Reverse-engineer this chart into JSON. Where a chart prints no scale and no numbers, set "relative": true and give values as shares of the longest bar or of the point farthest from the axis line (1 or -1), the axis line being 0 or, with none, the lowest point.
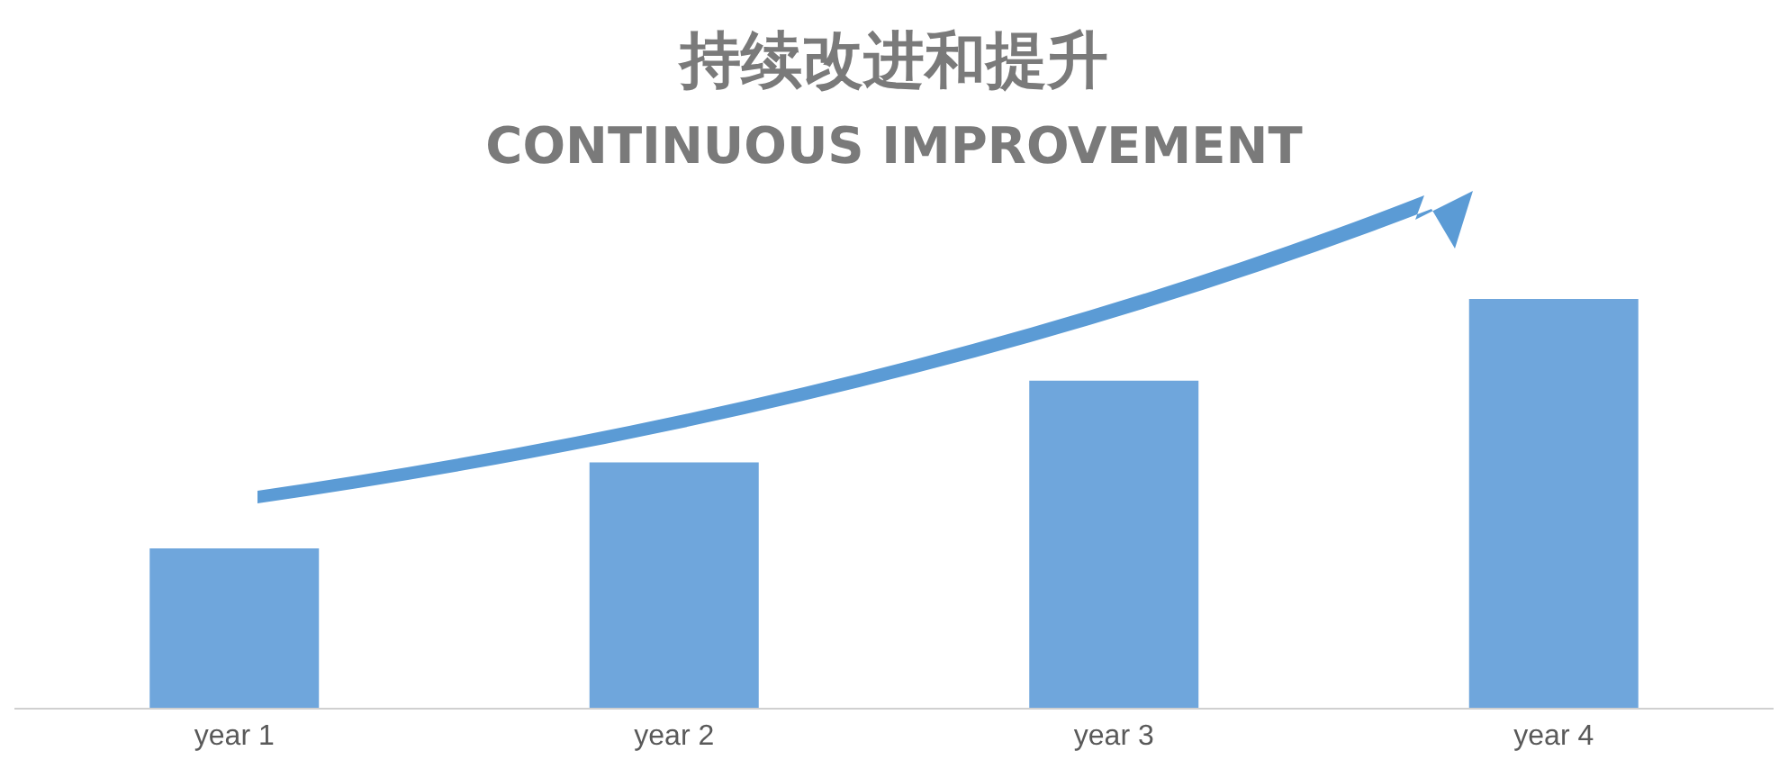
{
  "chart_data": {
    "type": "bar",
    "title": "持续改进和提升",
    "subtitle": "CONTINUOUS IMPROVEMENT",
    "categories": [
      "year 1",
      "year 2",
      "year 3",
      "year 4"
    ],
    "values": [
      0.39,
      0.6,
      0.8,
      1
    ],
    "color": "#6fa6dc",
    "relative": true
  }
}
